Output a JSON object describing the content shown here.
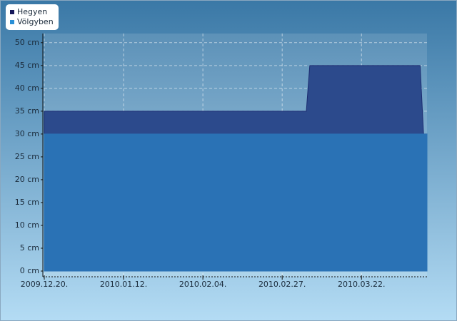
{
  "chart_data": {
    "type": "area",
    "x": [
      "2009-12-20",
      "2010-03-06",
      "2010-03-07",
      "2010-04-08",
      "2010-04-09",
      "2010-04-10"
    ],
    "series": [
      {
        "name": "Hegyen",
        "color": "#2c4a8c",
        "legend_color": "#16185a",
        "values": [
          35,
          35,
          45,
          45,
          30,
          30
        ]
      },
      {
        "name": "Völgyben",
        "color": "#2a72b5",
        "legend_color": "#2a8fd6",
        "values": [
          30,
          30,
          30,
          30,
          30,
          30
        ]
      }
    ],
    "xlim": [
      "2009-12-20",
      "2010-04-10"
    ],
    "xticks": [
      {
        "value": "2009-12-20",
        "label": "2009.12.20."
      },
      {
        "value": "2010-01-12",
        "label": "2010.01.12."
      },
      {
        "value": "2010-02-04",
        "label": "2010.02.04."
      },
      {
        "value": "2010-02-27",
        "label": "2010.02.27."
      },
      {
        "value": "2010-03-22",
        "label": "2010.03.22."
      }
    ],
    "ylim": [
      -1.25,
      52
    ],
    "yticks": [
      {
        "value": 0,
        "label": "0 cm"
      },
      {
        "value": 5,
        "label": "5 cm"
      },
      {
        "value": 10,
        "label": "10 cm"
      },
      {
        "value": 15,
        "label": "15 cm"
      },
      {
        "value": 20,
        "label": "20 cm"
      },
      {
        "value": 25,
        "label": "25 cm"
      },
      {
        "value": 30,
        "label": "30 cm"
      },
      {
        "value": 35,
        "label": "35 cm"
      },
      {
        "value": 40,
        "label": "40 cm"
      },
      {
        "value": 45,
        "label": "45 cm"
      },
      {
        "value": 50,
        "label": "50 cm"
      }
    ],
    "grid": true,
    "legend": "upper left"
  }
}
